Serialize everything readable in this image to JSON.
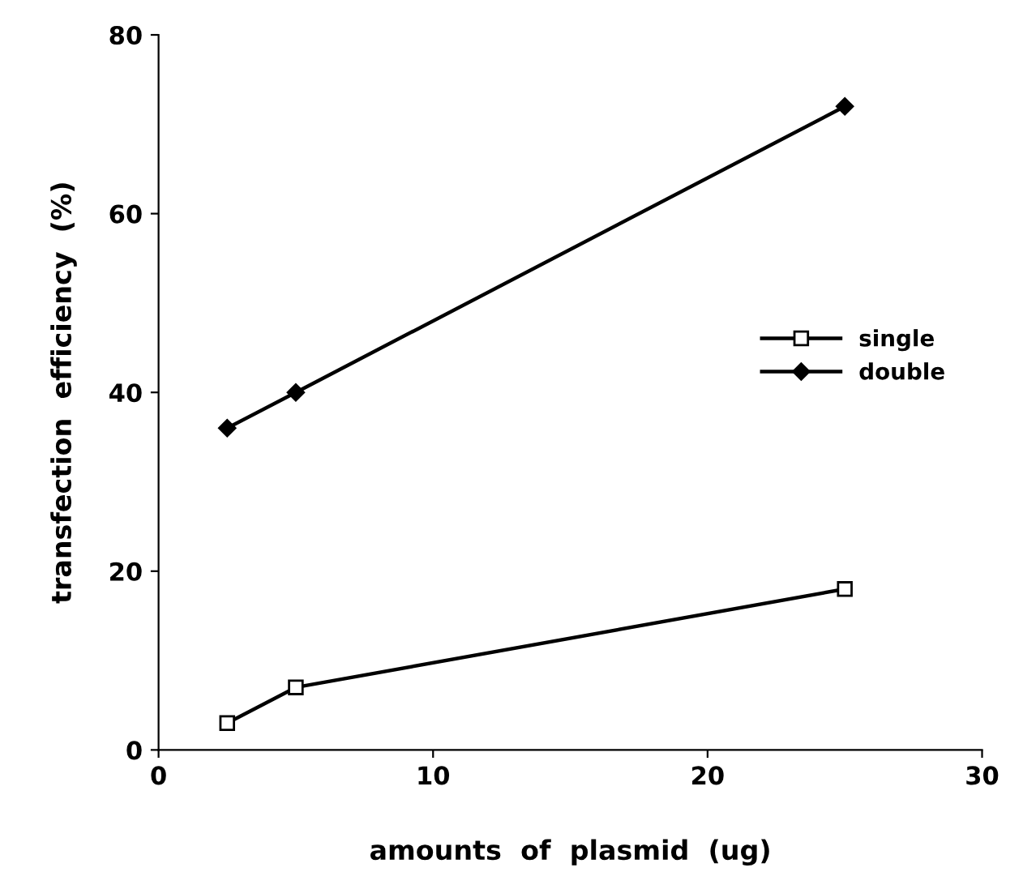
{
  "chart_data": {
    "type": "line",
    "xlabel": "amounts  of  plasmid  (ug)",
    "ylabel": "transfection  efficiency  (%)",
    "xlim": [
      0,
      30
    ],
    "xticks": [
      0,
      10,
      20,
      30
    ],
    "ylim": [
      0,
      80
    ],
    "yticks": [
      0,
      20,
      40,
      60,
      80
    ],
    "grid": false,
    "legend": "right",
    "line_style": "solid",
    "series": [
      {
        "name": "single",
        "color": "#000000",
        "marker": "square",
        "x": [
          2.5,
          5,
          25
        ],
        "values": [
          3,
          7,
          18
        ]
      },
      {
        "name": "double",
        "color": "#000000",
        "marker": "diamond",
        "x": [
          2.5,
          5,
          25
        ],
        "values": [
          36,
          40,
          72
        ]
      }
    ]
  }
}
